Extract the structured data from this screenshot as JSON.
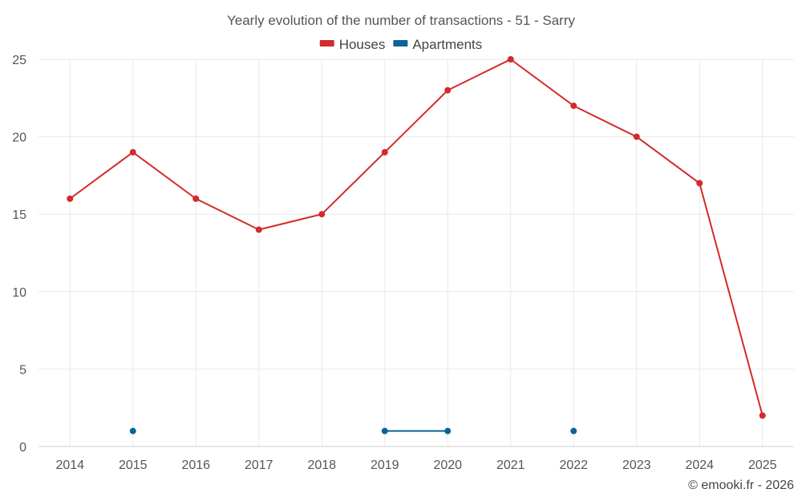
{
  "chart_data": {
    "type": "line",
    "title": "Yearly evolution of the number of transactions - 51 - Sarry",
    "xlabel": "",
    "ylabel": "",
    "categories": [
      "2014",
      "2015",
      "2016",
      "2017",
      "2018",
      "2019",
      "2020",
      "2021",
      "2022",
      "2023",
      "2024",
      "2025"
    ],
    "ylim": [
      0,
      25
    ],
    "yticks": [
      0,
      5,
      10,
      15,
      20,
      25
    ],
    "grid": true,
    "legend_position": "top-center",
    "series": [
      {
        "name": "Houses",
        "color": "#d32a2a",
        "values": [
          16,
          19,
          16,
          14,
          15,
          19,
          23,
          25,
          22,
          20,
          17,
          2
        ]
      },
      {
        "name": "Apartments",
        "color": "#0b6496",
        "values": [
          null,
          1,
          null,
          null,
          null,
          1,
          1,
          null,
          1,
          null,
          null,
          null
        ]
      }
    ]
  },
  "credit": "© emooki.fr - 2026"
}
